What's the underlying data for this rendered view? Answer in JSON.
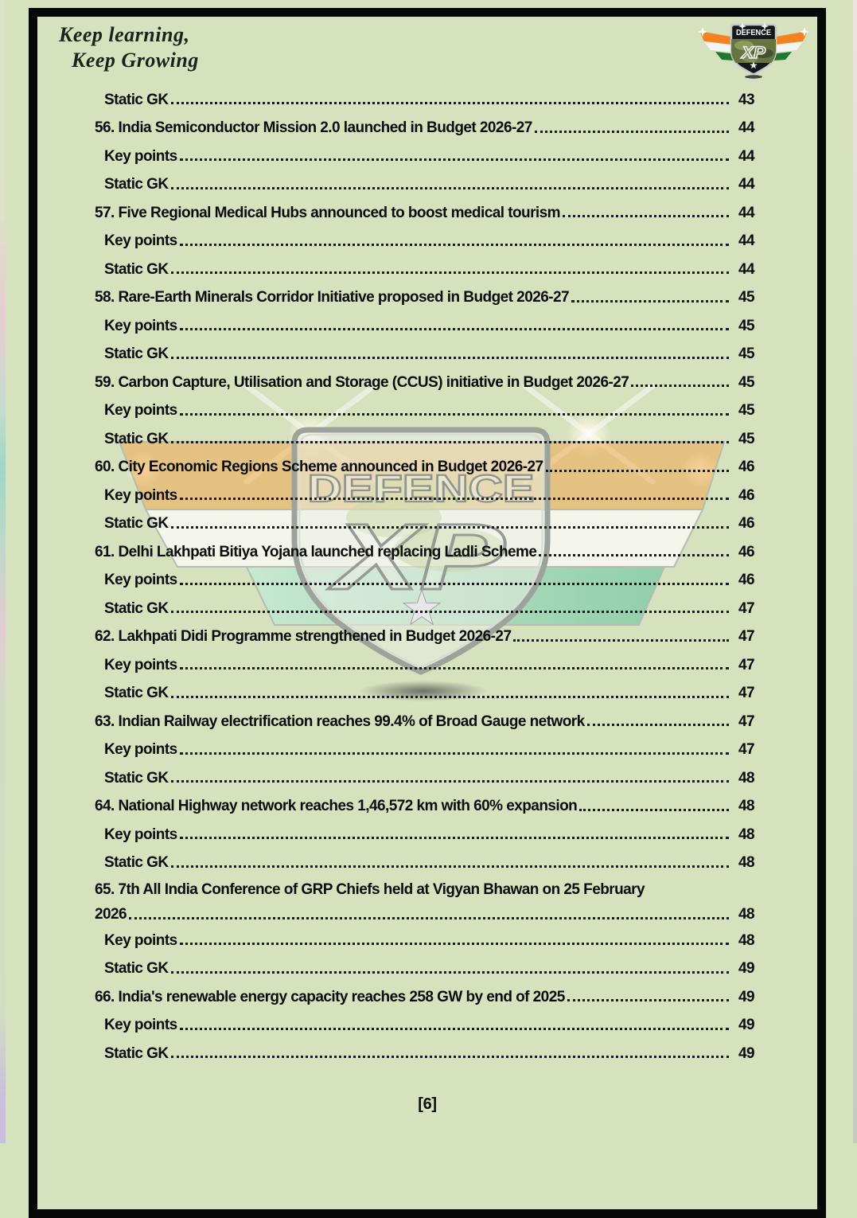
{
  "header": {
    "tagline_line1": "Keep learning,",
    "tagline_line2": "Keep Growing"
  },
  "logo": {
    "brand_top": "DEFENCE",
    "brand_bottom": "XP"
  },
  "watermark": {
    "brand_top": "DEFENCE",
    "brand_bottom": "XP"
  },
  "toc": {
    "rows": [
      {
        "level": 1,
        "text": "Static GK",
        "page": "43"
      },
      {
        "level": 0,
        "text": "56. India Semiconductor Mission 2.0 launched in Budget 2026-27",
        "page": "44"
      },
      {
        "level": 1,
        "text": "Key points",
        "page": "44"
      },
      {
        "level": 1,
        "text": "Static GK",
        "page": "44"
      },
      {
        "level": 0,
        "text": "57. Five Regional Medical Hubs announced to boost medical tourism",
        "page": "44"
      },
      {
        "level": 1,
        "text": "Key points",
        "page": "44"
      },
      {
        "level": 1,
        "text": "Static GK",
        "page": "44"
      },
      {
        "level": 0,
        "text": "58. Rare-Earth Minerals Corridor Initiative proposed in Budget 2026-27",
        "page": "45"
      },
      {
        "level": 1,
        "text": "Key points",
        "page": "45"
      },
      {
        "level": 1,
        "text": "Static GK",
        "page": "45"
      },
      {
        "level": 0,
        "text": "59. Carbon Capture, Utilisation and Storage (CCUS) initiative in Budget 2026-27",
        "page": "45"
      },
      {
        "level": 1,
        "text": "Key points",
        "page": "45"
      },
      {
        "level": 1,
        "text": "Static GK",
        "page": "45"
      },
      {
        "level": 0,
        "text": "60. City Economic Regions Scheme announced in Budget 2026-27",
        "page": "46"
      },
      {
        "level": 1,
        "text": "Key points",
        "page": "46"
      },
      {
        "level": 1,
        "text": "Static GK",
        "page": "46"
      },
      {
        "level": 0,
        "text": "61. Delhi Lakhpati Bitiya Yojana launched replacing Ladli Scheme",
        "page": "46"
      },
      {
        "level": 1,
        "text": "Key points",
        "page": "46"
      },
      {
        "level": 1,
        "text": "Static GK",
        "page": "47"
      },
      {
        "level": 0,
        "text": "62. Lakhpati Didi Programme strengthened in Budget 2026-27",
        "page": "47"
      },
      {
        "level": 1,
        "text": "Key points",
        "page": "47"
      },
      {
        "level": 1,
        "text": "Static GK",
        "page": "47"
      },
      {
        "level": 0,
        "text": "63. Indian Railway electrification reaches 99.4% of Broad Gauge network",
        "page": "47"
      },
      {
        "level": 1,
        "text": "Key points",
        "page": "47"
      },
      {
        "level": 1,
        "text": "Static GK",
        "page": "48"
      },
      {
        "level": 0,
        "text": "64. National Highway network reaches 1,46,572 km with 60% expansion",
        "page": "48"
      },
      {
        "level": 1,
        "text": "Key points",
        "page": "48"
      },
      {
        "level": 1,
        "text": "Static GK",
        "page": "48"
      },
      {
        "level": 0,
        "text": "65. 7th All India Conference of GRP Chiefs held at Vigyan Bhawan on 25 February",
        "text2": "2026",
        "page": "48"
      },
      {
        "level": 1,
        "text": "Key points",
        "page": "48"
      },
      {
        "level": 1,
        "text": "Static GK",
        "page": "49"
      },
      {
        "level": 0,
        "text": "66. India's renewable energy capacity reaches 258 GW by end of 2025",
        "page": "49"
      },
      {
        "level": 1,
        "text": "Key points",
        "page": "49"
      },
      {
        "level": 1,
        "text": "Static GK",
        "page": "49"
      }
    ]
  },
  "footer": {
    "label": "[6]"
  },
  "colors": {
    "page_bg": "#d6e1bd",
    "frame_black": "#070707",
    "text": "#0c0c0c",
    "dot_leader": "#1b1b1b",
    "flag_saffron": "#f58220",
    "flag_green": "#20772f",
    "band_orange": "#f2a648",
    "band_white": "#fbfbf8",
    "band_teal": "#8fd0ae",
    "shield_dark": "#15181a",
    "silver": "#9da39b"
  }
}
